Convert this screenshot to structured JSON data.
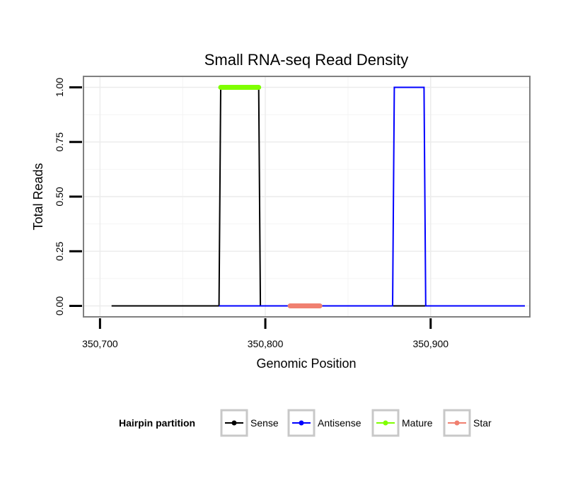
{
  "chart_data": {
    "type": "line",
    "title": "Small RNA-seq Read Density",
    "xlabel": "Genomic Position",
    "ylabel": "Total Reads",
    "xlim": [
      350690,
      350960
    ],
    "ylim": [
      -0.05,
      1.05
    ],
    "x_ticks": [
      {
        "value": 350700,
        "label": "350,700"
      },
      {
        "value": 350800,
        "label": "350,800"
      },
      {
        "value": 350900,
        "label": "350,900"
      }
    ],
    "y_ticks": [
      {
        "value": 0.0,
        "label": "0.00"
      },
      {
        "value": 0.25,
        "label": "0.25"
      },
      {
        "value": 0.5,
        "label": "0.50"
      },
      {
        "value": 0.75,
        "label": "0.75"
      },
      {
        "value": 1.0,
        "label": "1.00"
      }
    ],
    "grid": true,
    "legend": {
      "title": "Hairpin partition",
      "position": "bottom",
      "entries": [
        "Sense",
        "Antisense",
        "Mature",
        "Star"
      ]
    },
    "series": [
      {
        "name": "Sense",
        "color": "#000000",
        "width": 2,
        "x": [
          350707,
          350772,
          350773,
          350796,
          350797,
          350957
        ],
        "y": [
          0,
          0,
          1,
          1,
          0,
          0
        ]
      },
      {
        "name": "Antisense",
        "color": "#0000ff",
        "width": 2,
        "x": [
          350772,
          350797,
          350877,
          350878,
          350896,
          350897,
          350957
        ],
        "y": [
          0,
          0,
          0,
          1,
          1,
          0,
          0
        ]
      },
      {
        "name": "Mature",
        "color": "#7fff00",
        "width": 7,
        "x": [
          350773,
          350796
        ],
        "y": [
          1,
          1
        ]
      },
      {
        "name": "Star",
        "color": "#f08070",
        "width": 7,
        "x": [
          350815,
          350833
        ],
        "y": [
          0,
          0
        ]
      }
    ]
  }
}
